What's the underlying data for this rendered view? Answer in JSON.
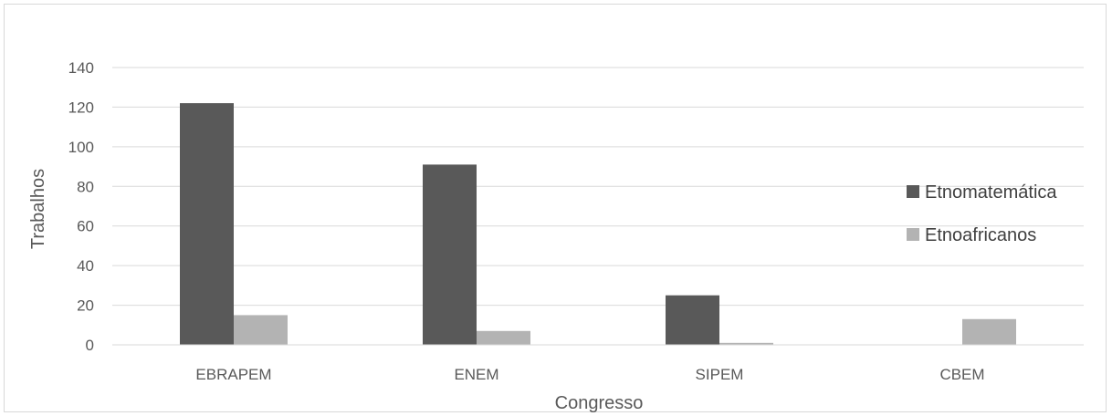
{
  "chart_data": {
    "type": "bar",
    "title": "",
    "xlabel": "Congresso",
    "ylabel": "Trabalhos",
    "categories": [
      "EBRAPEM",
      "ENEM",
      "SIPEM",
      "CBEM"
    ],
    "series": [
      {
        "name": "Etnomatemática",
        "values": [
          122,
          91,
          25,
          0
        ],
        "color": "#595959"
      },
      {
        "name": "Etnoafricanos",
        "values": [
          15,
          7,
          1,
          13
        ],
        "color": "#b3b3b3"
      }
    ],
    "ylim": [
      0,
      140
    ],
    "yticks": [
      0,
      20,
      40,
      60,
      80,
      100,
      120,
      140
    ],
    "grid": true,
    "legend_position": "right"
  }
}
